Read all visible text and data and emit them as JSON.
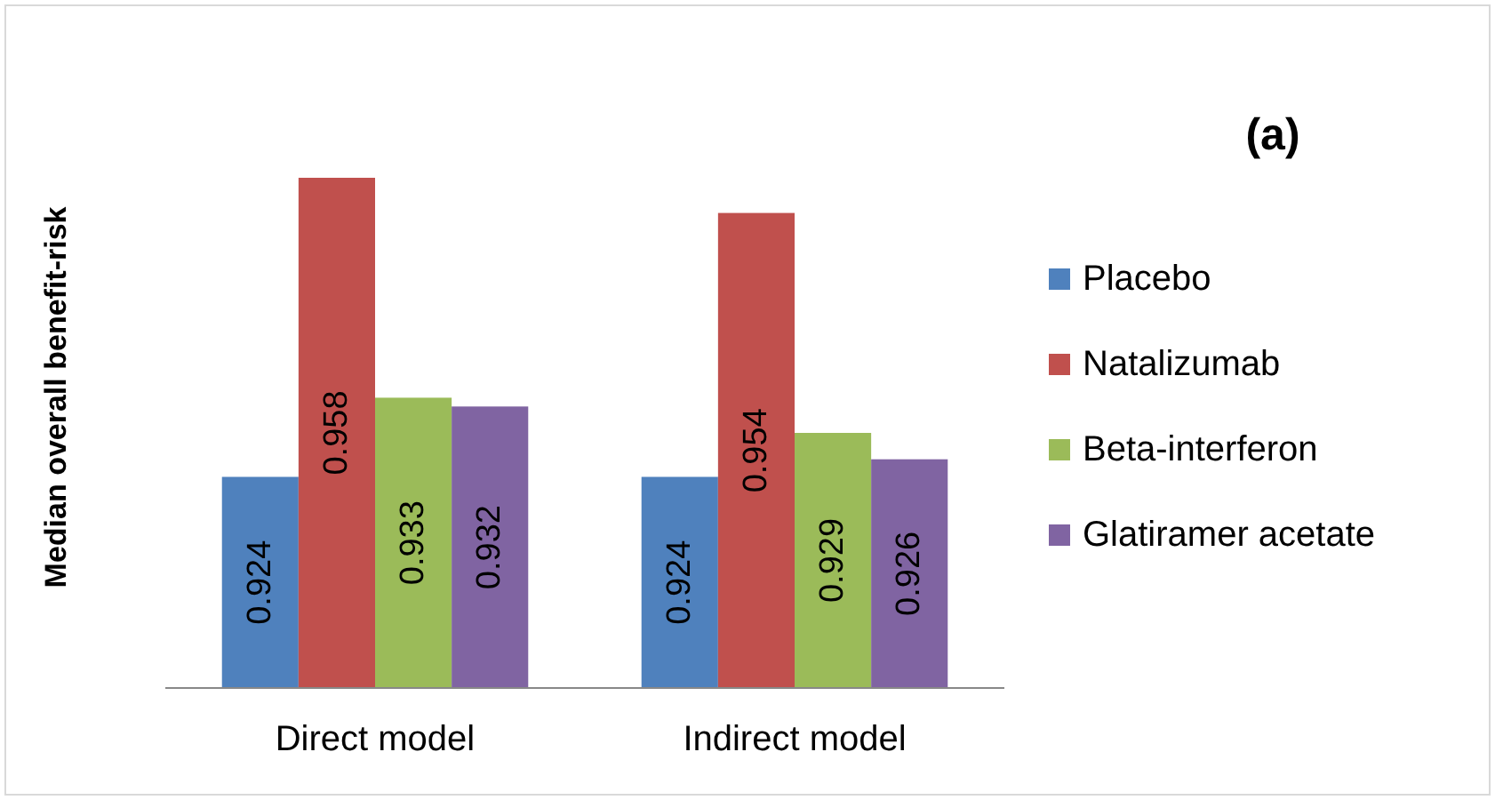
{
  "chart_data": {
    "type": "bar",
    "title": "(a)",
    "ylabel": "Median overall benefit-risk",
    "categories": [
      "Direct model",
      "Indirect model"
    ],
    "series": [
      {
        "name": "Placebo",
        "color": "#4f81bd",
        "values": [
          0.924,
          0.924
        ]
      },
      {
        "name": "Natalizumab",
        "color": "#c0504d",
        "values": [
          0.958,
          0.954
        ]
      },
      {
        "name": "Beta-interferon",
        "color": "#9bbb59",
        "values": [
          0.933,
          0.929
        ]
      },
      {
        "name": "Glatiramer acetate",
        "color": "#8064a2",
        "values": [
          0.932,
          0.926
        ]
      }
    ],
    "ylim": [
      0.9,
      0.958
    ],
    "data_labels": true,
    "legend": "right"
  }
}
